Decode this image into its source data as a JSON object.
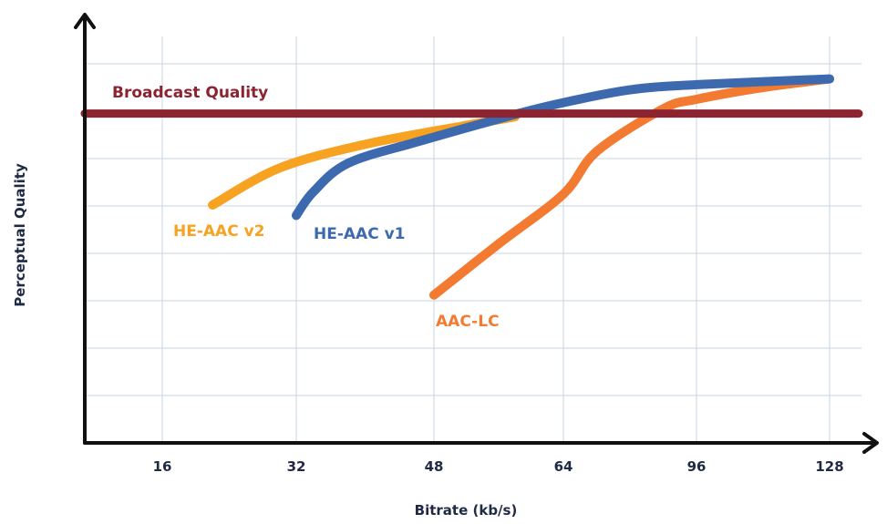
{
  "chart_data": {
    "type": "line",
    "title": "",
    "xlabel": "Bitrate (kb/s)",
    "ylabel": "Perceptual Quality",
    "xticks": [
      "16",
      "32",
      "48",
      "64",
      "96",
      "128"
    ],
    "grid": true,
    "ylim": [
      0,
      8
    ],
    "reference_line": {
      "name": "Broadcast Quality",
      "y": 6.95,
      "color": "#8b2331"
    },
    "series": [
      {
        "name": "HE-AAC v2",
        "color": "#f7a221",
        "points": [
          [
            22,
            5.02
          ],
          [
            30,
            5.8
          ],
          [
            40,
            6.3
          ],
          [
            52,
            6.7
          ],
          [
            58,
            6.88
          ]
        ]
      },
      {
        "name": "HE-AAC v1",
        "color": "#3d6aaf",
        "points": [
          [
            32,
            4.8
          ],
          [
            34,
            5.3
          ],
          [
            38,
            5.9
          ],
          [
            46,
            6.35
          ],
          [
            58,
            6.93
          ],
          [
            64,
            7.18
          ],
          [
            80,
            7.45
          ],
          [
            96,
            7.56
          ],
          [
            128,
            7.68
          ]
        ]
      },
      {
        "name": "AAC-LC",
        "color": "#f27a31",
        "points": [
          [
            48,
            3.12
          ],
          [
            56,
            4.2
          ],
          [
            64,
            5.25
          ],
          [
            72,
            6.15
          ],
          [
            88,
            7.05
          ],
          [
            96,
            7.25
          ],
          [
            112,
            7.5
          ],
          [
            128,
            7.68
          ]
        ]
      }
    ]
  }
}
